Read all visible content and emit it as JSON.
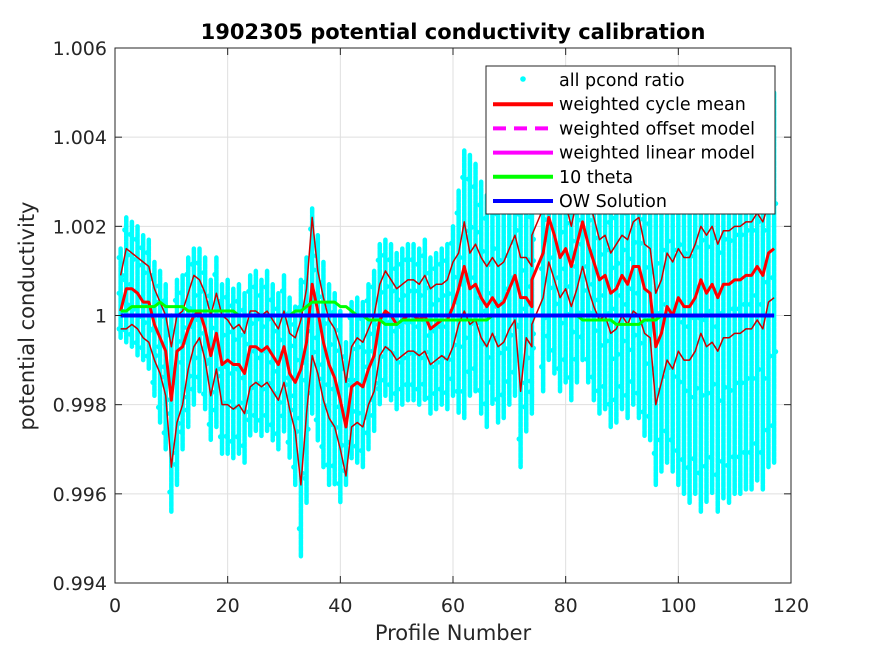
{
  "chart_data": {
    "type": "scatter",
    "title": "1902305 potential conductivity calibration",
    "xlabel": "Profile Number",
    "ylabel": "potential conductivity",
    "xlim": [
      0,
      120
    ],
    "ylim": [
      0.994,
      1.006
    ],
    "xticks": [
      0,
      20,
      40,
      60,
      80,
      100,
      120
    ],
    "xtick_labels": [
      "0",
      "20",
      "40",
      "60",
      "80",
      "100",
      "120"
    ],
    "yticks": [
      0.994,
      0.996,
      0.998,
      1.0,
      1.002,
      1.004,
      1.006
    ],
    "ytick_labels": [
      "0.994",
      "0.996",
      "0.998",
      "1",
      "1.002",
      "1.004",
      "1.006"
    ],
    "grid": true,
    "legend_position": "top-right",
    "legend": [
      {
        "label": "all pcond ratio",
        "color": "#00ffff",
        "style": "dot"
      },
      {
        "label": "weighted cycle mean",
        "color": "#ff0000",
        "style": "solid"
      },
      {
        "label": "weighted offset model",
        "color": "#ff00ff",
        "style": "dashed"
      },
      {
        "label": "weighted linear model",
        "color": "#ff00ff",
        "style": "solid"
      },
      {
        "label": "10 theta",
        "color": "#00ff00",
        "style": "solid"
      },
      {
        "label": "OW Solution",
        "color": "#0000ff",
        "style": "solid"
      }
    ],
    "profiles": [
      1,
      2,
      3,
      4,
      5,
      6,
      7,
      8,
      9,
      10,
      11,
      12,
      13,
      14,
      15,
      16,
      17,
      18,
      19,
      20,
      21,
      22,
      23,
      24,
      25,
      26,
      27,
      28,
      29,
      30,
      31,
      32,
      33,
      34,
      35,
      36,
      37,
      38,
      39,
      40,
      41,
      42,
      43,
      44,
      45,
      46,
      47,
      48,
      49,
      50,
      51,
      52,
      53,
      54,
      55,
      56,
      57,
      58,
      59,
      60,
      61,
      62,
      63,
      64,
      65,
      66,
      67,
      68,
      69,
      70,
      71,
      72,
      73,
      74,
      74,
      76,
      77,
      78,
      79,
      80,
      81,
      82,
      83,
      84,
      85,
      86,
      87,
      88,
      89,
      90,
      91,
      92,
      93,
      94,
      95,
      96,
      97,
      98,
      99,
      100,
      101,
      102,
      103,
      104,
      105,
      106,
      107,
      108,
      109,
      110,
      111,
      112,
      113,
      114,
      115,
      116,
      117
    ],
    "series": [
      {
        "name": "weighted cycle mean",
        "color": "#ff0000",
        "width": 3,
        "values": [
          1.0001,
          1.0006,
          1.0006,
          1.0005,
          1.0003,
          1.0003,
          0.9998,
          0.9995,
          0.9992,
          0.9981,
          0.9992,
          0.9993,
          0.9997,
          1.0,
          1.0001,
          0.9997,
          0.9991,
          0.9996,
          0.9989,
          0.999,
          0.9989,
          0.9989,
          0.9987,
          0.9993,
          0.9993,
          0.9992,
          0.9993,
          0.9991,
          0.9989,
          0.9993,
          0.9987,
          0.9985,
          0.9988,
          0.9994,
          1.0007,
          1.0001,
          0.9994,
          0.9989,
          0.9986,
          0.9981,
          0.9975,
          0.9984,
          0.9985,
          0.9984,
          0.9988,
          0.9991,
          0.9999,
          1.0001,
          1.0,
          0.9998,
          0.9999,
          1.0,
          1.0,
          0.9999,
          1.0,
          0.9997,
          0.9998,
          0.9999,
          0.9999,
          1.0002,
          1.0006,
          1.0011,
          1.0006,
          1.0007,
          1.0004,
          1.0002,
          1.0004,
          1.0002,
          1.0003,
          1.0006,
          1.0009,
          1.0004,
          1.0004,
          1.0002,
          1.0008,
          1.0014,
          1.0022,
          1.0018,
          1.0013,
          1.0015,
          1.0011,
          1.0016,
          1.0021,
          1.0016,
          1.0012,
          1.0008,
          1.0009,
          1.0005,
          1.0006,
          1.0009,
          1.0007,
          1.0011,
          1.0011,
          1.0006,
          1.0005,
          0.9993,
          0.9996,
          1.0002,
          1.0,
          1.0004,
          1.0002,
          1.0002,
          1.0004,
          1.0008,
          1.0005,
          1.0007,
          1.0004,
          1.0007,
          1.0007,
          1.0008,
          1.0008,
          1.0009,
          1.0009,
          1.0011,
          1.0009,
          1.0014,
          1.0015
        ]
      },
      {
        "name": "upper bound",
        "color": "#cc0000",
        "width": 1.5,
        "values": [
          1.0009,
          1.0015,
          1.0014,
          1.0013,
          1.0012,
          1.0011,
          1.0006,
          1.0003,
          1.0,
          0.9993,
          1.0,
          1.0001,
          1.0005,
          1.0009,
          1.0008,
          1.0005,
          1.0,
          1.0005,
          1.0,
          0.9999,
          0.9997,
          0.9998,
          0.9996,
          1.0001,
          1.0001,
          1.0,
          1.0001,
          0.9999,
          0.9997,
          1.0001,
          0.9996,
          0.9995,
          0.9999,
          1.0006,
          1.0022,
          1.001,
          1.0004,
          0.9999,
          0.9997,
          0.9993,
          0.9985,
          0.9993,
          0.9995,
          0.9994,
          0.9997,
          1.0,
          1.0007,
          1.001,
          1.0008,
          1.0006,
          1.0007,
          1.0008,
          1.0008,
          1.0007,
          1.0009,
          1.0006,
          1.0007,
          1.0007,
          1.0008,
          1.0012,
          1.0014,
          1.0021,
          1.0014,
          1.0016,
          1.0013,
          1.0011,
          1.0013,
          1.0011,
          1.0012,
          1.0015,
          1.0018,
          1.0013,
          1.0013,
          1.0011,
          1.0018,
          1.0024,
          1.0032,
          1.0028,
          1.0023,
          1.0025,
          1.002,
          1.0026,
          1.0031,
          1.0026,
          1.0022,
          1.0017,
          1.0018,
          1.0014,
          1.0016,
          1.0018,
          1.0017,
          1.0021,
          1.0022,
          1.0016,
          1.0015,
          1.0005,
          1.0008,
          1.0014,
          1.0012,
          1.0015,
          1.0013,
          1.0013,
          1.0016,
          1.002,
          1.0018,
          1.002,
          1.0016,
          1.0019,
          1.0019,
          1.002,
          1.002,
          1.0021,
          1.0021,
          1.0023,
          1.0021,
          1.0025,
          1.0026
        ]
      },
      {
        "name": "lower bound",
        "color": "#cc0000",
        "width": 1.5,
        "values": [
          0.9997,
          0.9997,
          0.9998,
          0.9997,
          0.9995,
          0.9994,
          0.999,
          0.9987,
          0.9982,
          0.9966,
          0.9976,
          0.998,
          0.9988,
          0.9993,
          0.9995,
          0.999,
          0.9982,
          0.9988,
          0.998,
          0.998,
          0.9979,
          0.998,
          0.9978,
          0.9984,
          0.9985,
          0.9984,
          0.9985,
          0.9983,
          0.9981,
          0.9985,
          0.9979,
          0.9974,
          0.9962,
          0.9978,
          0.9991,
          0.9987,
          0.9981,
          0.9977,
          0.9975,
          0.997,
          0.9964,
          0.9975,
          0.9976,
          0.9975,
          0.998,
          0.9983,
          0.9991,
          0.9993,
          0.9992,
          0.999,
          0.9991,
          0.9992,
          0.9992,
          0.9991,
          0.9992,
          0.9989,
          0.999,
          0.9991,
          0.999,
          0.9993,
          0.9998,
          1.0001,
          0.9998,
          0.9999,
          0.9995,
          0.9993,
          0.9996,
          0.9993,
          0.9994,
          0.9997,
          0.9999,
          0.9983,
          0.9995,
          0.9993,
          0.9998,
          1.0004,
          1.0012,
          1.0008,
          1.0004,
          1.0006,
          1.0002,
          1.0006,
          1.0011,
          1.0006,
          1.0002,
          0.9999,
          1.0,
          0.9996,
          0.9997,
          1.0,
          0.9998,
          1.0001,
          1.0,
          0.9996,
          0.9995,
          0.998,
          0.9985,
          0.999,
          0.9988,
          0.9992,
          0.999,
          0.999,
          0.9992,
          0.9996,
          0.9993,
          0.9994,
          0.9992,
          0.9995,
          0.9995,
          0.9996,
          0.9996,
          0.9997,
          0.9997,
          0.9999,
          0.9997,
          1.0003,
          1.0004
        ]
      },
      {
        "name": "10 theta",
        "color": "#00ff00",
        "width": 3,
        "values": [
          1.0001,
          1.0001,
          1.0002,
          1.0002,
          1.0002,
          1.0002,
          1.0002,
          1.0003,
          1.0002,
          1.0002,
          1.0002,
          1.0002,
          1.0001,
          1.0001,
          1.0001,
          1.0001,
          1.0001,
          1.0001,
          1.0001,
          1.0001,
          1.0001,
          1.0,
          1.0,
          1.0,
          1.0,
          1.0,
          1.0,
          1.0,
          1.0,
          1.0,
          1.0,
          1.0001,
          1.0001,
          1.0002,
          1.0003,
          1.0003,
          1.0003,
          1.0003,
          1.0003,
          1.0002,
          1.0002,
          1.0001,
          1.0,
          1.0,
          0.9999,
          0.9999,
          0.9999,
          0.9998,
          0.9998,
          0.9998,
          0.9999,
          0.9999,
          0.9999,
          0.9999,
          0.9999,
          0.9999,
          0.9999,
          0.9999,
          0.9999,
          0.9999,
          0.9999,
          0.9999,
          0.9999,
          0.9999,
          0.9999,
          0.9999,
          1.0,
          1.0,
          1.0,
          1.0,
          1.0,
          1.0,
          1.0,
          1.0,
          1.0,
          1.0,
          1.0,
          1.0,
          1.0,
          1.0,
          1.0,
          1.0,
          0.9999,
          0.9999,
          0.9999,
          0.9999,
          0.9999,
          0.9999,
          0.9998,
          0.9998,
          0.9998,
          0.9998,
          0.9998,
          0.9999,
          0.9999,
          0.9999,
          1.0,
          1.0,
          1.0,
          1.0,
          1.0,
          1.0,
          1.0,
          1.0,
          1.0,
          1.0,
          1.0,
          1.0,
          1.0,
          1.0,
          1.0,
          1.0,
          1.0,
          1.0,
          1.0,
          1.0,
          1.0
        ]
      },
      {
        "name": "weighted linear model",
        "color": "#ff00ff",
        "width": 3,
        "values": [
          1.0,
          1.0
        ]
      },
      {
        "name": "OW Solution",
        "color": "#0000ff",
        "width": 4,
        "values": [
          1.0,
          1.0
        ]
      }
    ],
    "scatter_spread": {
      "name": "all pcond ratio",
      "color": "#00ffff",
      "upper": [
        1.0015,
        1.0022,
        1.0021,
        1.002,
        1.0018,
        1.0017,
        1.0012,
        1.001,
        1.0007,
        1.0,
        1.0008,
        1.0009,
        1.0013,
        1.0015,
        1.0015,
        1.0013,
        1.0008,
        1.0013,
        1.0007,
        1.0008,
        1.0006,
        1.0007,
        1.0005,
        1.0009,
        1.001,
        1.0008,
        1.001,
        1.0007,
        1.0005,
        1.0009,
        1.0004,
        1.0002,
        1.0008,
        1.0013,
        1.0024,
        1.0018,
        1.0012,
        1.0007,
        1.0005,
        1.0001,
        0.9994,
        1.0003,
        1.0004,
        1.0003,
        1.0007,
        1.001,
        1.0016,
        1.0017,
        1.0016,
        1.0014,
        1.0015,
        1.0016,
        1.0016,
        1.0015,
        1.0017,
        1.0013,
        1.0014,
        1.0015,
        1.0016,
        1.002,
        1.0028,
        1.0037,
        1.0036,
        1.0034,
        1.003,
        1.0027,
        1.003,
        1.0028,
        1.0029,
        1.0032,
        1.0035,
        1.0029,
        1.0029,
        1.0027,
        1.0033,
        1.0038,
        1.0044,
        1.0039,
        1.0034,
        1.0036,
        1.0032,
        1.0037,
        1.0042,
        1.0037,
        1.0033,
        1.0029,
        1.003,
        1.0026,
        1.0027,
        1.003,
        1.0028,
        1.0032,
        1.0033,
        1.0027,
        1.0026,
        1.0033,
        1.0036,
        1.0038,
        1.0036,
        1.0039,
        1.0037,
        1.0037,
        1.0039,
        1.0043,
        1.004,
        1.0042,
        1.0039,
        1.0042,
        1.0042,
        1.0043,
        1.0043,
        1.0044,
        1.0044,
        1.0046,
        1.0044,
        1.0049,
        1.005
      ],
      "lower": [
        0.9995,
        0.9994,
        0.9993,
        0.9991,
        0.999,
        0.9988,
        0.9982,
        0.9976,
        0.997,
        0.9956,
        0.9962,
        0.997,
        0.9975,
        0.998,
        0.9983,
        0.9979,
        0.9972,
        0.9975,
        0.9969,
        0.9969,
        0.9968,
        0.9969,
        0.9967,
        0.9973,
        0.9974,
        0.9973,
        0.9974,
        0.9972,
        0.997,
        0.9974,
        0.9968,
        0.9962,
        0.9946,
        0.9958,
        0.9978,
        0.9972,
        0.9966,
        0.9962,
        0.9962,
        0.9958,
        0.9962,
        0.9968,
        0.9967,
        0.9966,
        0.997,
        0.9974,
        0.998,
        0.9982,
        0.9981,
        0.9979,
        0.998,
        0.9981,
        0.9981,
        0.998,
        0.9981,
        0.9978,
        0.9979,
        0.998,
        0.9979,
        0.9982,
        0.9978,
        0.9977,
        0.9982,
        0.9983,
        0.9978,
        0.9975,
        0.998,
        0.9976,
        0.9977,
        0.998,
        0.9982,
        0.9966,
        0.9974,
        0.9978,
        0.998,
        0.9983,
        0.999,
        0.9987,
        0.9983,
        0.9985,
        0.9981,
        0.9985,
        0.999,
        0.9985,
        0.9981,
        0.9978,
        0.9979,
        0.9975,
        0.9976,
        0.9979,
        0.9977,
        0.998,
        0.9977,
        0.9973,
        0.9972,
        0.9962,
        0.9965,
        0.9967,
        0.9965,
        0.9962,
        0.996,
        0.9958,
        0.996,
        0.9956,
        0.9958,
        0.996,
        0.9956,
        0.9959,
        0.9958,
        0.996,
        0.996,
        0.9961,
        0.9961,
        0.9963,
        0.9961,
        0.9966,
        0.9967
      ]
    }
  }
}
